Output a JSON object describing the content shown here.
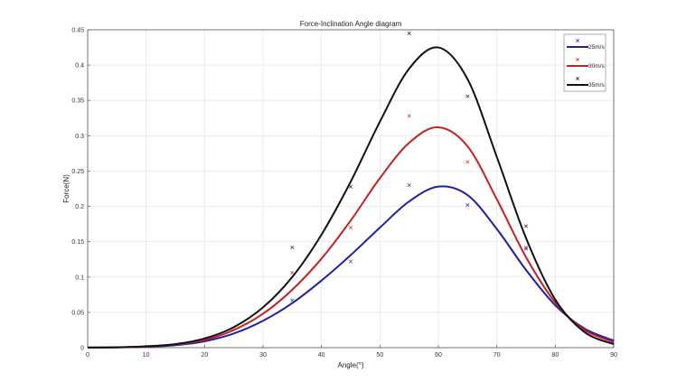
{
  "chart_data": {
    "type": "line",
    "title": "Force-Inclination Angle diagram",
    "xlabel": "Angle(°)",
    "ylabel": "Force(N)",
    "xlim": [
      0,
      90
    ],
    "ylim": [
      0,
      0.45
    ],
    "xticks": [
      "0",
      "10",
      "20",
      "30",
      "40",
      "50",
      "60",
      "70",
      "80",
      "90"
    ],
    "yticks": [
      "0",
      "0.05",
      "0.1",
      "0.15",
      "0.2",
      "0.25",
      "0.3",
      "0.35",
      "0.4",
      "0.45"
    ],
    "grid": true,
    "legend_position": "top-right",
    "series": [
      {
        "name": "25m/s",
        "color": "#1f1fa8",
        "fit_x": [
          0,
          5,
          10,
          15,
          20,
          25,
          30,
          35,
          40,
          45,
          50,
          55,
          60,
          65,
          70,
          75,
          80,
          85,
          90
        ],
        "fit_y": [
          0.0001,
          0.0004,
          0.0012,
          0.0035,
          0.009,
          0.02,
          0.038,
          0.063,
          0.095,
          0.131,
          0.17,
          0.207,
          0.228,
          0.216,
          0.168,
          0.11,
          0.06,
          0.027,
          0.01
        ],
        "points_x": [
          35,
          45,
          55,
          65,
          75
        ],
        "points_y": [
          0.067,
          0.122,
          0.23,
          0.202,
          0.14
        ]
      },
      {
        "name": "30m/s",
        "color": "#c62020",
        "fit_x": [
          0,
          5,
          10,
          15,
          20,
          25,
          30,
          35,
          40,
          45,
          50,
          55,
          60,
          65,
          70,
          75,
          80,
          85,
          90
        ],
        "fit_y": [
          0.0001,
          0.0005,
          0.0016,
          0.0045,
          0.011,
          0.025,
          0.048,
          0.082,
          0.126,
          0.18,
          0.24,
          0.29,
          0.312,
          0.285,
          0.21,
          0.128,
          0.064,
          0.025,
          0.008
        ],
        "points_x": [
          35,
          45,
          55,
          65,
          75
        ],
        "points_y": [
          0.106,
          0.17,
          0.328,
          0.263,
          0.142
        ]
      },
      {
        "name": "35m/s",
        "color": "#111111",
        "fit_x": [
          0,
          5,
          10,
          15,
          20,
          25,
          30,
          35,
          40,
          45,
          50,
          55,
          60,
          65,
          70,
          75,
          80,
          85,
          90
        ],
        "fit_y": [
          0.0001,
          0.0005,
          0.002,
          0.005,
          0.013,
          0.029,
          0.057,
          0.1,
          0.16,
          0.235,
          0.32,
          0.395,
          0.425,
          0.38,
          0.27,
          0.155,
          0.068,
          0.022,
          0.005
        ],
        "points_x": [
          35,
          45,
          55,
          65,
          75
        ],
        "points_y": [
          0.142,
          0.228,
          0.445,
          0.356,
          0.172
        ]
      }
    ]
  }
}
